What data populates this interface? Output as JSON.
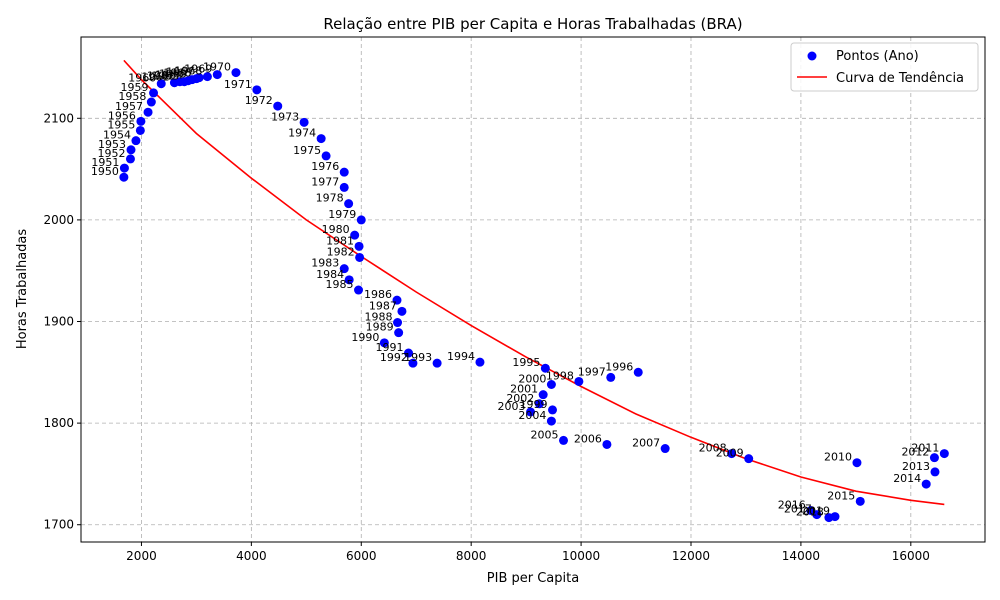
{
  "chart_data": {
    "type": "scatter",
    "title": "Relação entre PIB per Capita e Horas Trabalhadas (BRA)",
    "xlabel": "PIB per Capita",
    "ylabel": "Horas Trabalhadas",
    "xlim": [
      900,
      17350
    ],
    "ylim": [
      1683,
      2180
    ],
    "xticks": [
      2000,
      4000,
      6000,
      8000,
      10000,
      12000,
      14000,
      16000
    ],
    "yticks": [
      1700,
      1800,
      1900,
      2000,
      2100
    ],
    "grid": true,
    "legend_position": "top-right",
    "colors": {
      "points": "#0000ff",
      "trend": "#ff0000"
    },
    "series": [
      {
        "name": "Pontos (Ano)",
        "kind": "scatter",
        "points": [
          {
            "label": "1950",
            "x": 1680,
            "y": 2042
          },
          {
            "label": "1951",
            "x": 1690,
            "y": 2051
          },
          {
            "label": "1952",
            "x": 1800,
            "y": 2060
          },
          {
            "label": "1953",
            "x": 1810,
            "y": 2069
          },
          {
            "label": "1954",
            "x": 1900,
            "y": 2078
          },
          {
            "label": "1955",
            "x": 1980,
            "y": 2088
          },
          {
            "label": "1956",
            "x": 1990,
            "y": 2097
          },
          {
            "label": "1957",
            "x": 2120,
            "y": 2106
          },
          {
            "label": "1958",
            "x": 2180,
            "y": 2116
          },
          {
            "label": "1959",
            "x": 2220,
            "y": 2125
          },
          {
            "label": "1960",
            "x": 2360,
            "y": 2134
          },
          {
            "label": "1961",
            "x": 2600,
            "y": 2135
          },
          {
            "label": "1962",
            "x": 2700,
            "y": 2136
          },
          {
            "label": "1963",
            "x": 2780,
            "y": 2136
          },
          {
            "label": "1964",
            "x": 2850,
            "y": 2137
          },
          {
            "label": "1965",
            "x": 2920,
            "y": 2138
          },
          {
            "label": "1966",
            "x": 3000,
            "y": 2139
          },
          {
            "label": "1967",
            "x": 3050,
            "y": 2140
          },
          {
            "label": "1968",
            "x": 3200,
            "y": 2141
          },
          {
            "label": "1969",
            "x": 3380,
            "y": 2143
          },
          {
            "label": "1970",
            "x": 3720,
            "y": 2145
          },
          {
            "label": "1971",
            "x": 4100,
            "y": 2128
          },
          {
            "label": "1972",
            "x": 4480,
            "y": 2112
          },
          {
            "label": "1973",
            "x": 4960,
            "y": 2096
          },
          {
            "label": "1974",
            "x": 5270,
            "y": 2080
          },
          {
            "label": "1975",
            "x": 5360,
            "y": 2063
          },
          {
            "label": "1976",
            "x": 5690,
            "y": 2047
          },
          {
            "label": "1977",
            "x": 5690,
            "y": 2032
          },
          {
            "label": "1978",
            "x": 5770,
            "y": 2016
          },
          {
            "label": "1979",
            "x": 6000,
            "y": 2000
          },
          {
            "label": "1980",
            "x": 5880,
            "y": 1985
          },
          {
            "label": "1981",
            "x": 5960,
            "y": 1974
          },
          {
            "label": "1982",
            "x": 5970,
            "y": 1963
          },
          {
            "label": "1983",
            "x": 5690,
            "y": 1952
          },
          {
            "label": "1984",
            "x": 5780,
            "y": 1941
          },
          {
            "label": "1985",
            "x": 5950,
            "y": 1931
          },
          {
            "label": "1986",
            "x": 6650,
            "y": 1921
          },
          {
            "label": "1987",
            "x": 6740,
            "y": 1910
          },
          {
            "label": "1988",
            "x": 6660,
            "y": 1899
          },
          {
            "label": "1989",
            "x": 6680,
            "y": 1889
          },
          {
            "label": "1990",
            "x": 6420,
            "y": 1879
          },
          {
            "label": "1991",
            "x": 6860,
            "y": 1869
          },
          {
            "label": "1992",
            "x": 6940,
            "y": 1859
          },
          {
            "label": "1993",
            "x": 7380,
            "y": 1859
          },
          {
            "label": "1994",
            "x": 8160,
            "y": 1860
          },
          {
            "label": "1995",
            "x": 9350,
            "y": 1854
          },
          {
            "label": "1996",
            "x": 11040,
            "y": 1850
          },
          {
            "label": "1997",
            "x": 10540,
            "y": 1845
          },
          {
            "label": "1998",
            "x": 9960,
            "y": 1841
          },
          {
            "label": "2000",
            "x": 9460,
            "y": 1838
          },
          {
            "label": "2001",
            "x": 9310,
            "y": 1828
          },
          {
            "label": "2002",
            "x": 9240,
            "y": 1819
          },
          {
            "label": "1999",
            "x": 9480,
            "y": 1813
          },
          {
            "label": "2003",
            "x": 9080,
            "y": 1811
          },
          {
            "label": "2004",
            "x": 9460,
            "y": 1802
          },
          {
            "label": "2005",
            "x": 9680,
            "y": 1783
          },
          {
            "label": "2006",
            "x": 10470,
            "y": 1779
          },
          {
            "label": "2007",
            "x": 11530,
            "y": 1775
          },
          {
            "label": "2008",
            "x": 12740,
            "y": 1770
          },
          {
            "label": "2009",
            "x": 13050,
            "y": 1765
          },
          {
            "label": "2010",
            "x": 15020,
            "y": 1761
          },
          {
            "label": "2011",
            "x": 16610,
            "y": 1770
          },
          {
            "label": "2012",
            "x": 16430,
            "y": 1766
          },
          {
            "label": "2013",
            "x": 16440,
            "y": 1752
          },
          {
            "label": "2014",
            "x": 16280,
            "y": 1740
          },
          {
            "label": "2015",
            "x": 15080,
            "y": 1723
          },
          {
            "label": "2016",
            "x": 14180,
            "y": 1714
          },
          {
            "label": "2017",
            "x": 14290,
            "y": 1710
          },
          {
            "label": "2018",
            "x": 14510,
            "y": 1707
          },
          {
            "label": "2019",
            "x": 14620,
            "y": 1708
          }
        ]
      },
      {
        "name": "Curva de Tendência",
        "kind": "line",
        "points": [
          {
            "x": 1680,
            "y": 2157
          },
          {
            "x": 2000,
            "y": 2138
          },
          {
            "x": 3000,
            "y": 2085
          },
          {
            "x": 4000,
            "y": 2041
          },
          {
            "x": 5000,
            "y": 2000
          },
          {
            "x": 6000,
            "y": 1964
          },
          {
            "x": 7000,
            "y": 1929
          },
          {
            "x": 8000,
            "y": 1896
          },
          {
            "x": 9000,
            "y": 1865
          },
          {
            "x": 10000,
            "y": 1836
          },
          {
            "x": 11000,
            "y": 1809
          },
          {
            "x": 12000,
            "y": 1786
          },
          {
            "x": 13000,
            "y": 1765
          },
          {
            "x": 14000,
            "y": 1747
          },
          {
            "x": 15000,
            "y": 1733
          },
          {
            "x": 16000,
            "y": 1724
          },
          {
            "x": 16610,
            "y": 1720
          }
        ]
      }
    ]
  }
}
